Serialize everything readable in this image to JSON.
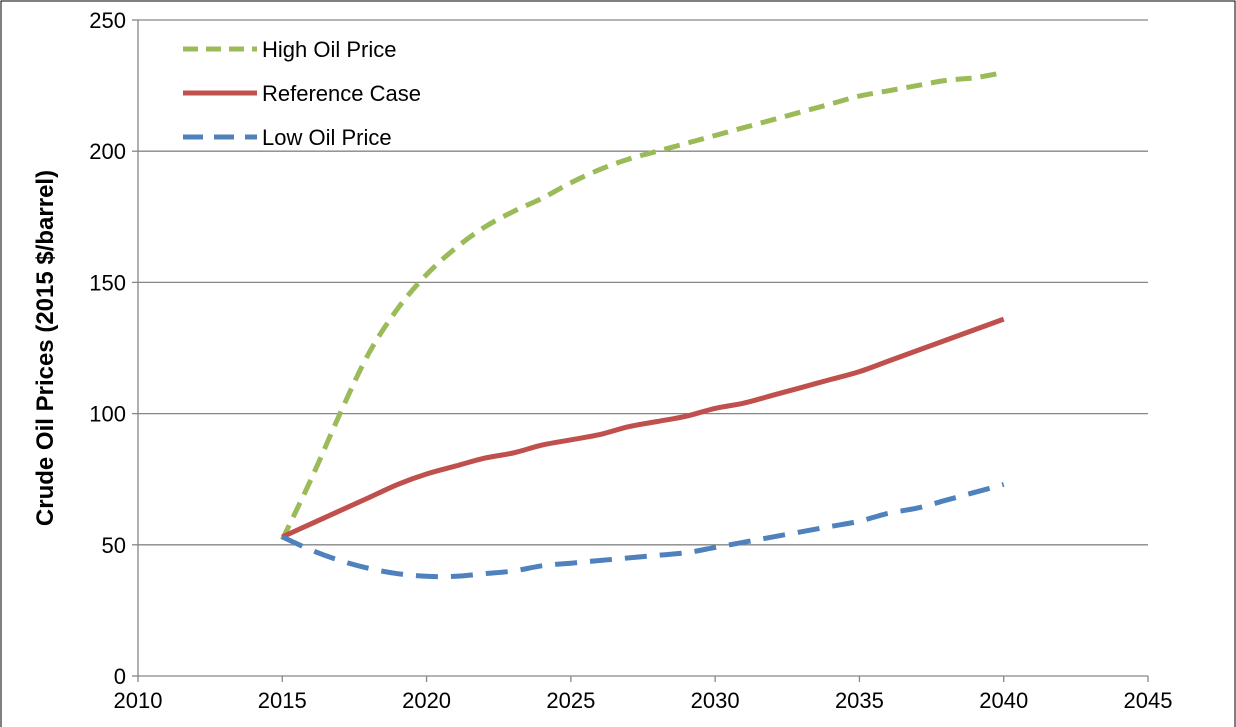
{
  "chart_data": {
    "type": "line",
    "title": "",
    "xlabel": "",
    "ylabel": "Crude Oil Prices (2015 $/barrel)",
    "xlim": [
      2010,
      2045
    ],
    "ylim": [
      0,
      250
    ],
    "x_ticks": [
      2010,
      2015,
      2020,
      2025,
      2030,
      2035,
      2040,
      2045
    ],
    "y_ticks": [
      0,
      50,
      100,
      150,
      200,
      250
    ],
    "grid": "horizontal",
    "legend_position": "top-left",
    "series": [
      {
        "name": "High Oil Price",
        "color": "#9BBB59",
        "dash": "dashed",
        "x": [
          2015,
          2016,
          2017,
          2018,
          2019,
          2020,
          2021,
          2022,
          2023,
          2024,
          2025,
          2026,
          2027,
          2028,
          2029,
          2030,
          2031,
          2032,
          2033,
          2034,
          2035,
          2036,
          2037,
          2038,
          2039,
          2040
        ],
        "y": [
          52,
          75,
          100,
          123,
          140,
          153,
          163,
          171,
          177,
          182,
          188,
          193,
          197,
          200,
          203,
          206,
          209,
          212,
          215,
          218,
          221,
          223,
          225,
          227,
          228,
          230
        ]
      },
      {
        "name": "Reference Case",
        "color": "#C0504D",
        "dash": "solid",
        "x": [
          2015,
          2016,
          2017,
          2018,
          2019,
          2020,
          2021,
          2022,
          2023,
          2024,
          2025,
          2026,
          2027,
          2028,
          2029,
          2030,
          2031,
          2032,
          2033,
          2034,
          2035,
          2036,
          2037,
          2038,
          2039,
          2040
        ],
        "y": [
          53,
          58,
          63,
          68,
          73,
          77,
          80,
          83,
          85,
          88,
          90,
          92,
          95,
          97,
          99,
          102,
          104,
          107,
          110,
          113,
          116,
          120,
          124,
          128,
          132,
          136
        ]
      },
      {
        "name": "Low Oil Price",
        "color": "#4F81BD",
        "dash": "dashed",
        "x": [
          2015,
          2016,
          2017,
          2018,
          2019,
          2020,
          2021,
          2022,
          2023,
          2024,
          2025,
          2026,
          2027,
          2028,
          2029,
          2030,
          2031,
          2032,
          2033,
          2034,
          2035,
          2036,
          2037,
          2038,
          2039,
          2040
        ],
        "y": [
          53,
          48,
          44,
          41,
          39,
          38,
          38,
          39,
          40,
          42,
          43,
          44,
          45,
          46,
          47,
          49,
          51,
          53,
          55,
          57,
          59,
          62,
          64,
          67,
          70,
          73
        ]
      }
    ]
  }
}
